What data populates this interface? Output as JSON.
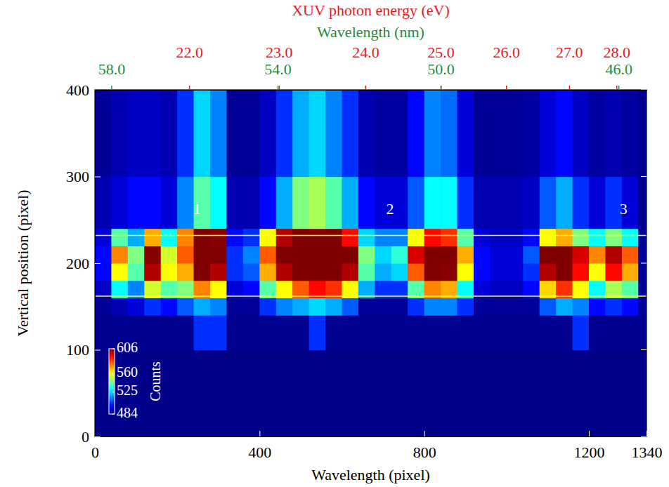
{
  "chart_data": {
    "type": "heatmap",
    "x_title": "Wavelength (pixel)",
    "y_title": "Vertical position (pixel)",
    "xlim": [
      0,
      1340
    ],
    "ylim": [
      0,
      400
    ],
    "xticks": [
      0,
      400,
      800,
      1200,
      1340
    ],
    "yticks": [
      0,
      100,
      200,
      300,
      400
    ],
    "top_axes": [
      {
        "title": "XUV photon energy (eV)",
        "color": "#e41a1c",
        "ticks": [
          {
            "value": 229,
            "label": "22.0"
          },
          {
            "value": 447,
            "label": "23.0"
          },
          {
            "value": 657,
            "label": "24.0"
          },
          {
            "value": 840,
            "label": "25.0"
          },
          {
            "value": 999,
            "label": "26.0"
          },
          {
            "value": 1152,
            "label": "27.0"
          },
          {
            "value": 1267,
            "label": "28.0"
          }
        ]
      },
      {
        "title": "Wavelength (nm)",
        "color": "#1f8a3c",
        "ticks": [
          {
            "value": 40,
            "label": "58.0"
          },
          {
            "value": 444,
            "label": "54.0"
          },
          {
            "value": 840,
            "label": "50.0"
          },
          {
            "value": 1272,
            "label": "46.0"
          }
        ]
      }
    ],
    "x_bins": [
      0,
      40,
      80,
      120,
      160,
      200,
      240,
      280,
      320,
      360,
      400,
      440,
      480,
      520,
      560,
      600,
      640,
      680,
      720,
      760,
      800,
      840,
      880,
      920,
      960,
      1000,
      1040,
      1080,
      1120,
      1160,
      1200,
      1240,
      1280,
      1320,
      1340
    ],
    "y_bins": [
      0,
      100,
      140,
      160,
      180,
      200,
      220,
      240,
      300,
      400
    ],
    "z": [
      [
        485,
        485,
        485,
        485,
        485,
        485,
        485,
        485,
        485,
        485,
        485,
        485,
        485,
        485,
        485,
        485,
        485,
        485,
        485,
        485,
        485,
        485,
        485,
        485,
        485,
        485,
        485,
        485,
        485,
        485,
        485,
        485,
        485,
        485
      ],
      [
        486,
        486,
        486,
        486,
        486,
        486,
        505,
        505,
        486,
        486,
        486,
        486,
        486,
        505,
        486,
        486,
        486,
        486,
        486,
        486,
        486,
        486,
        486,
        486,
        486,
        486,
        486,
        486,
        486,
        505,
        486,
        486,
        486,
        486
      ],
      [
        487,
        490,
        495,
        505,
        500,
        510,
        520,
        515,
        487,
        487,
        505,
        515,
        520,
        525,
        520,
        510,
        487,
        487,
        487,
        505,
        515,
        515,
        505,
        487,
        487,
        487,
        487,
        510,
        520,
        515,
        500,
        505,
        500,
        487
      ],
      [
        492,
        530,
        515,
        555,
        540,
        545,
        575,
        560,
        495,
        500,
        540,
        560,
        580,
        590,
        585,
        560,
        520,
        505,
        505,
        540,
        575,
        570,
        530,
        495,
        492,
        492,
        500,
        565,
        585,
        560,
        530,
        550,
        540,
        487
      ],
      [
        500,
        560,
        540,
        600,
        560,
        570,
        610,
        600,
        505,
        510,
        570,
        600,
        615,
        615,
        615,
        600,
        540,
        520,
        525,
        580,
        610,
        605,
        560,
        500,
        495,
        495,
        505,
        600,
        610,
        590,
        560,
        590,
        570,
        487
      ],
      [
        500,
        575,
        545,
        605,
        555,
        580,
        615,
        610,
        505,
        515,
        580,
        610,
        620,
        620,
        620,
        610,
        545,
        525,
        535,
        595,
        615,
        615,
        570,
        500,
        495,
        495,
        510,
        610,
        615,
        595,
        575,
        600,
        580,
        488
      ],
      [
        495,
        540,
        520,
        570,
        530,
        575,
        615,
        605,
        500,
        505,
        560,
        600,
        615,
        615,
        610,
        590,
        525,
        515,
        515,
        560,
        590,
        585,
        540,
        495,
        492,
        492,
        500,
        560,
        570,
        545,
        530,
        545,
        530,
        487
      ],
      [
        490,
        495,
        500,
        500,
        495,
        515,
        540,
        530,
        490,
        490,
        500,
        520,
        545,
        550,
        540,
        520,
        500,
        495,
        495,
        510,
        530,
        530,
        505,
        490,
        490,
        490,
        492,
        510,
        520,
        505,
        495,
        505,
        495,
        486
      ],
      [
        487,
        490,
        492,
        492,
        490,
        505,
        525,
        515,
        487,
        487,
        492,
        505,
        520,
        525,
        515,
        505,
        490,
        488,
        488,
        500,
        515,
        512,
        495,
        487,
        487,
        487,
        488,
        495,
        500,
        492,
        488,
        490,
        488,
        486
      ]
    ],
    "colorbar": {
      "title": "Counts",
      "range": [
        484,
        606
      ],
      "ticks": [
        484,
        525,
        560,
        606
      ]
    },
    "annotations": [
      {
        "text": "1",
        "x": 248,
        "y": 261
      },
      {
        "text": "2",
        "x": 717,
        "y": 261
      },
      {
        "text": "3",
        "x": 1284,
        "y": 261
      }
    ],
    "hlines": [
      {
        "y": 232,
        "color": "#ffff33"
      },
      {
        "y": 162,
        "color": "#ffff33"
      }
    ]
  }
}
